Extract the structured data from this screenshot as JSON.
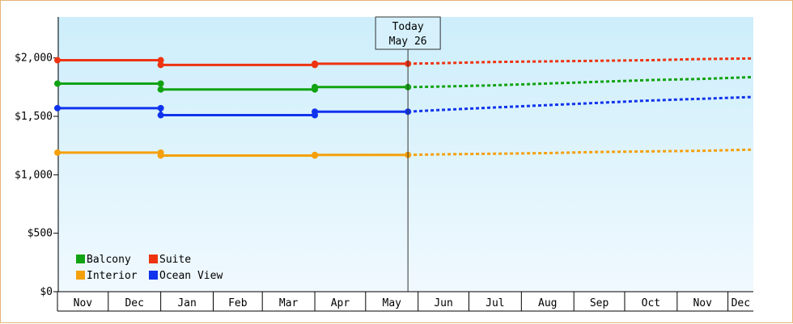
{
  "chart_data": {
    "type": "line",
    "y_ticks": [
      "$0",
      "$500",
      "$1,000",
      "$1,500",
      "$2,000"
    ],
    "y_tick_values": [
      0,
      500,
      1000,
      1500,
      2000
    ],
    "ylim": [
      0,
      2350
    ],
    "months": [
      "Nov",
      "Dec",
      "Jan",
      "Feb",
      "Mar",
      "Apr",
      "May",
      "Jun",
      "Jul",
      "Aug",
      "Sep",
      "Oct",
      "Nov",
      "Dec"
    ],
    "today": {
      "line1": "Today",
      "line2": "May 26"
    },
    "grid": false,
    "legend_placement": "bottom-left",
    "series": [
      {
        "name": "Suite",
        "color": "#ee3311",
        "history": [
          [
            "2023-11-01",
            1980
          ],
          [
            "2024-01-01",
            1980
          ],
          [
            "2024-01-01",
            1940
          ],
          [
            "2024-04-01",
            1940
          ],
          [
            "2024-04-01",
            1950
          ],
          [
            "2024-05-26",
            1950
          ]
        ],
        "forecast": [
          [
            "2024-05-26",
            1950
          ],
          [
            "2024-06-15",
            1955
          ],
          [
            "2024-07-15",
            1965
          ],
          [
            "2024-08-15",
            1970
          ],
          [
            "2024-09-15",
            1975
          ],
          [
            "2024-10-15",
            1980
          ],
          [
            "2024-11-15",
            1990
          ],
          [
            "2024-12-15",
            1995
          ]
        ]
      },
      {
        "name": "Balcony",
        "color": "#11a311",
        "history": [
          [
            "2023-11-01",
            1780
          ],
          [
            "2024-01-01",
            1780
          ],
          [
            "2024-01-01",
            1730
          ],
          [
            "2024-04-01",
            1730
          ],
          [
            "2024-04-01",
            1750
          ],
          [
            "2024-05-26",
            1750
          ]
        ],
        "forecast": [
          [
            "2024-05-26",
            1750
          ],
          [
            "2024-06-15",
            1755
          ],
          [
            "2024-07-15",
            1765
          ],
          [
            "2024-08-15",
            1780
          ],
          [
            "2024-09-15",
            1795
          ],
          [
            "2024-10-15",
            1810
          ],
          [
            "2024-11-15",
            1820
          ],
          [
            "2024-12-15",
            1835
          ]
        ]
      },
      {
        "name": "Ocean View",
        "color": "#1133ee",
        "history": [
          [
            "2023-11-01",
            1570
          ],
          [
            "2024-01-01",
            1570
          ],
          [
            "2024-01-01",
            1510
          ],
          [
            "2024-04-01",
            1510
          ],
          [
            "2024-04-01",
            1540
          ],
          [
            "2024-05-26",
            1540
          ]
        ],
        "forecast": [
          [
            "2024-05-26",
            1540
          ],
          [
            "2024-06-15",
            1555
          ],
          [
            "2024-07-15",
            1575
          ],
          [
            "2024-08-15",
            1595
          ],
          [
            "2024-09-15",
            1615
          ],
          [
            "2024-10-15",
            1635
          ],
          [
            "2024-11-15",
            1650
          ],
          [
            "2024-12-15",
            1665
          ]
        ]
      },
      {
        "name": "Interior",
        "color": "#f5a00a",
        "history": [
          [
            "2023-11-01",
            1190
          ],
          [
            "2024-01-01",
            1190
          ],
          [
            "2024-01-01",
            1165
          ],
          [
            "2024-04-01",
            1165
          ],
          [
            "2024-04-01",
            1170
          ],
          [
            "2024-05-26",
            1170
          ]
        ],
        "forecast": [
          [
            "2024-05-26",
            1170
          ],
          [
            "2024-06-15",
            1175
          ],
          [
            "2024-07-15",
            1180
          ],
          [
            "2024-08-15",
            1185
          ],
          [
            "2024-09-15",
            1195
          ],
          [
            "2024-10-15",
            1200
          ],
          [
            "2024-11-15",
            1205
          ],
          [
            "2024-12-15",
            1215
          ]
        ]
      }
    ],
    "legend": [
      {
        "name": "Balcony",
        "color": "#11a311"
      },
      {
        "name": "Suite",
        "color": "#ee3311"
      },
      {
        "name": "Interior",
        "color": "#f5a00a"
      },
      {
        "name": "Ocean View",
        "color": "#1133ee"
      }
    ]
  }
}
